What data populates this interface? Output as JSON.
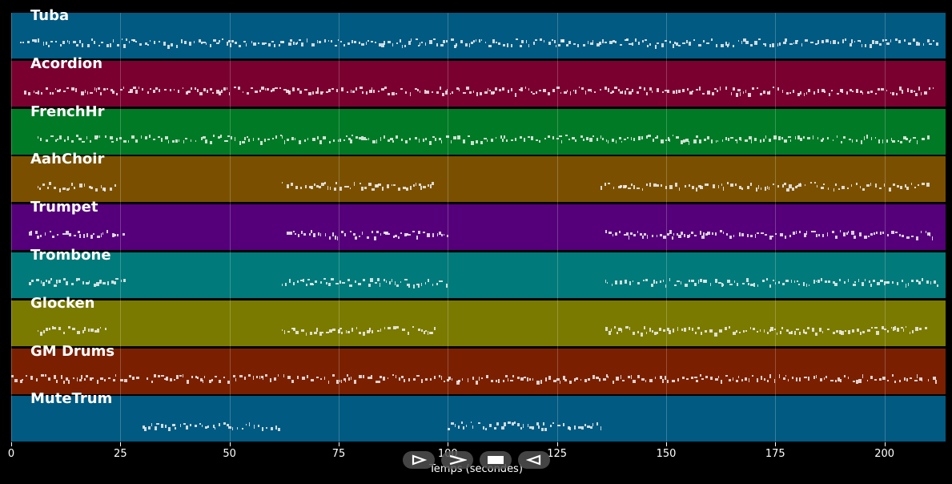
{
  "chart_data": {
    "type": "piano-roll",
    "xlabel": "Temps (secondes)",
    "xlim": [
      0,
      214
    ],
    "x_ticks": [
      0,
      25,
      50,
      75,
      100,
      125,
      150,
      175,
      200
    ],
    "tracks": [
      {
        "name": "Tuba",
        "color": "#005a82",
        "segments": [
          [
            2,
            212
          ]
        ]
      },
      {
        "name": "Acordion",
        "color": "#7a0030",
        "segments": [
          [
            3,
            212
          ]
        ]
      },
      {
        "name": "FrenchHr",
        "color": "#007a25",
        "segments": [
          [
            6,
            210
          ]
        ]
      },
      {
        "name": "AahChoir",
        "color": "#7a5000",
        "segments": [
          [
            6,
            24
          ],
          [
            62,
            97
          ],
          [
            135,
            210
          ]
        ]
      },
      {
        "name": "Trumpet",
        "color": "#55007a",
        "segments": [
          [
            4,
            26
          ],
          [
            63,
            100
          ],
          [
            136,
            212
          ]
        ]
      },
      {
        "name": "Trombone",
        "color": "#007a7a",
        "segments": [
          [
            4,
            26
          ],
          [
            62,
            100
          ],
          [
            136,
            212
          ]
        ]
      },
      {
        "name": "Glocken",
        "color": "#7a7a00",
        "segments": [
          [
            6,
            22
          ],
          [
            62,
            97
          ],
          [
            136,
            210
          ]
        ]
      },
      {
        "name": "GM Drums",
        "color": "#7a2000",
        "segments": [
          [
            0,
            29
          ],
          [
            31,
            209
          ],
          [
            210,
            212
          ]
        ]
      },
      {
        "name": "MuteTrum",
        "color": "#005a82",
        "segments": [
          [
            30,
            62
          ],
          [
            100,
            135
          ]
        ]
      }
    ]
  },
  "controls": [
    {
      "name": "play-button",
      "icon": "play-icon"
    },
    {
      "name": "fast-forward-button",
      "icon": "forward-icon"
    },
    {
      "name": "stop-button",
      "icon": "stop-icon"
    },
    {
      "name": "rewind-button",
      "icon": "rewind-icon"
    }
  ]
}
